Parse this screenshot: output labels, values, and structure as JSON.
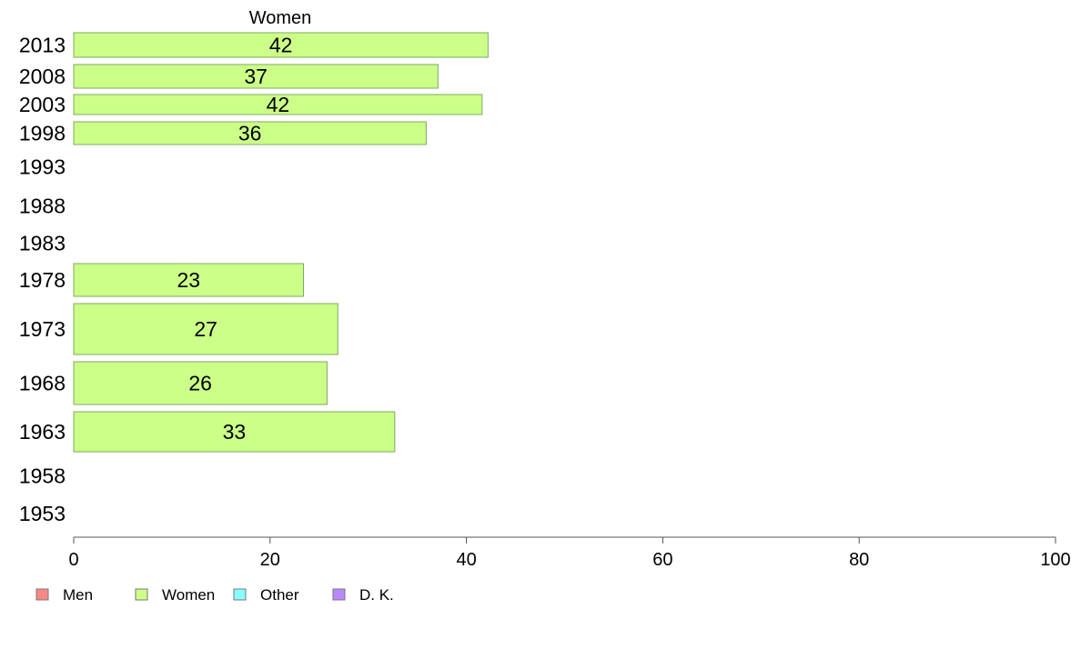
{
  "chart_data": {
    "type": "bar",
    "orientation": "horizontal",
    "title": "Women",
    "xlim": [
      0,
      100
    ],
    "xticks": [
      0,
      20,
      40,
      60,
      80,
      100
    ],
    "grid": false,
    "legend_position": "bottom-left",
    "categories": [
      "2013",
      "2008",
      "2003",
      "1998",
      "1993",
      "1988",
      "1983",
      "1978",
      "1973",
      "1968",
      "1963",
      "1958",
      "1953"
    ],
    "series": [
      {
        "name": "Women",
        "color": "#ccff88",
        "values": [
          42.2,
          37.1,
          41.6,
          35.9,
          null,
          null,
          null,
          23.4,
          26.9,
          25.8,
          32.7,
          null,
          null
        ],
        "labels": [
          "42",
          "37",
          "42",
          "36",
          "",
          "",
          "",
          "23",
          "27",
          "26",
          "33",
          "",
          ""
        ]
      }
    ],
    "legend": [
      {
        "label": "Men",
        "color": "#f88888"
      },
      {
        "label": "Women",
        "color": "#ccff88"
      },
      {
        "label": "Other",
        "color": "#88ffff"
      },
      {
        "label": "D. K.",
        "color": "#bb88ff"
      }
    ]
  }
}
